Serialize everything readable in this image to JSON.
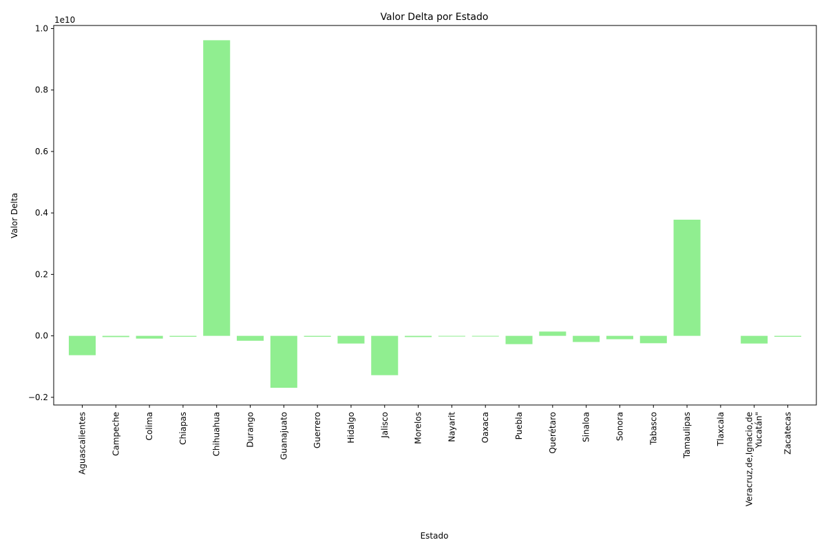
{
  "chart_data": {
    "type": "bar",
    "title": "Valor Delta por Estado",
    "xlabel": "Estado",
    "ylabel": "Valor Delta",
    "y_offset_label": "1e10",
    "bar_color": "#90ee90",
    "ylim": [
      -0.225,
      1.01
    ],
    "yticks": [
      -0.2,
      0.0,
      0.2,
      0.4,
      0.6,
      0.8,
      1.0
    ],
    "ytick_labels": [
      "−0.2",
      "0.0",
      "0.2",
      "0.4",
      "0.6",
      "0.8",
      "1.0"
    ],
    "categories": [
      "Aguascalientes",
      "Campeche",
      "Colima",
      "Chiapas",
      "Chihuahua",
      "Durango",
      "Guanajuato",
      "Guerrero",
      "Hidalgo",
      "Jalisco",
      "Morelos",
      "Nayarit",
      "Oaxaca",
      "Puebla",
      "Querétaro",
      "Sinaloa",
      "Sonora",
      "Tabasco",
      "Tamaulipas",
      "Tlaxcala",
      "Veracruz,de,Ignacio,de\nYucatán\"",
      "Zacatecas"
    ],
    "values": [
      -0.063,
      -0.004,
      -0.009,
      -0.003,
      0.962,
      -0.016,
      -0.169,
      -0.003,
      -0.025,
      -0.128,
      -0.004,
      -0.002,
      -0.002,
      -0.027,
      0.014,
      -0.02,
      -0.011,
      -0.024,
      0.378,
      0.0,
      -0.025,
      -0.003
    ]
  }
}
